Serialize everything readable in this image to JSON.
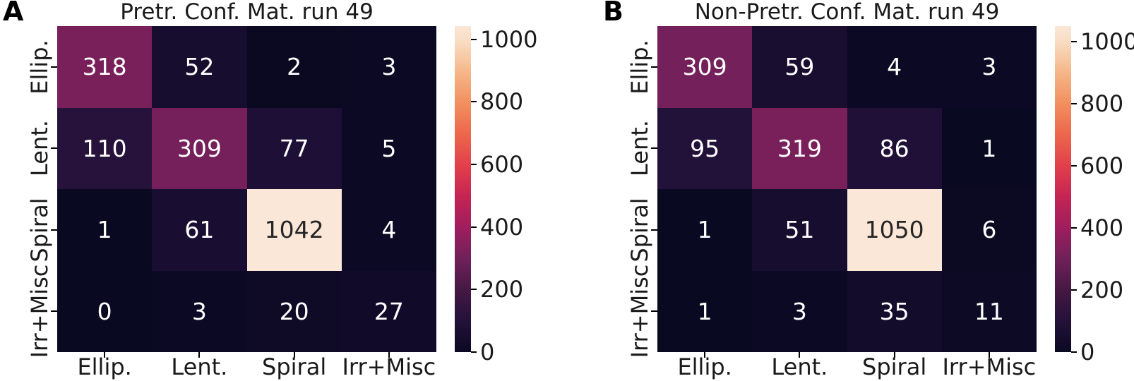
{
  "figure": {
    "background": "#ffffff"
  },
  "colors": {
    "axis_text": "#1a1a1a",
    "annotation_light": "#ffffff",
    "annotation_dark": "#262626",
    "tick_mark": "#000000",
    "rocket_colormap_anchors": [
      [
        0.0,
        "#0a0922"
      ],
      [
        0.095,
        "#23113a"
      ],
      [
        0.19,
        "#451843"
      ],
      [
        0.286,
        "#70205a"
      ],
      [
        0.381,
        "#9e1e5e"
      ],
      [
        0.476,
        "#c52454"
      ],
      [
        0.571,
        "#e23f4c"
      ],
      [
        0.667,
        "#ec664b"
      ],
      [
        0.762,
        "#f28f5f"
      ],
      [
        0.857,
        "#f6b688"
      ],
      [
        0.952,
        "#f8dcc2"
      ],
      [
        1.0,
        "#fae7d8"
      ]
    ]
  },
  "chart_data": [
    {
      "type": "heatmap",
      "panel_letter": "A",
      "title": "Pretr. Conf. Mat. run 49",
      "x_tick_labels": [
        "Ellip.",
        "Lent.",
        "Spiral",
        "Irr+Misc"
      ],
      "y_tick_labels": [
        "Ellip.",
        "Lent.",
        "Spiral",
        "Irr+Misc"
      ],
      "values": [
        [
          318,
          52,
          2,
          3
        ],
        [
          110,
          309,
          77,
          5
        ],
        [
          1,
          61,
          1042,
          4
        ],
        [
          0,
          3,
          20,
          27
        ]
      ],
      "vmin": 0,
      "vmax": 1042,
      "colorbar_ticks": [
        0,
        200,
        400,
        600,
        800,
        1000
      ],
      "colormap": "rocket",
      "legend_position": "right-colorbar",
      "grid": false
    },
    {
      "type": "heatmap",
      "panel_letter": "B",
      "title": "Non-Pretr. Conf. Mat. run 49",
      "x_tick_labels": [
        "Ellip.",
        "Lent.",
        "Spiral",
        "Irr+Misc"
      ],
      "y_tick_labels": [
        "Ellip.",
        "Lent.",
        "Spiral",
        "Irr+Misc"
      ],
      "values": [
        [
          309,
          59,
          4,
          3
        ],
        [
          95,
          319,
          86,
          1
        ],
        [
          1,
          51,
          1050,
          6
        ],
        [
          1,
          3,
          35,
          11
        ]
      ],
      "vmin": 0,
      "vmax": 1050,
      "colorbar_ticks": [
        0,
        200,
        400,
        600,
        800,
        1000
      ],
      "colormap": "rocket",
      "legend_position": "right-colorbar",
      "grid": false
    }
  ]
}
